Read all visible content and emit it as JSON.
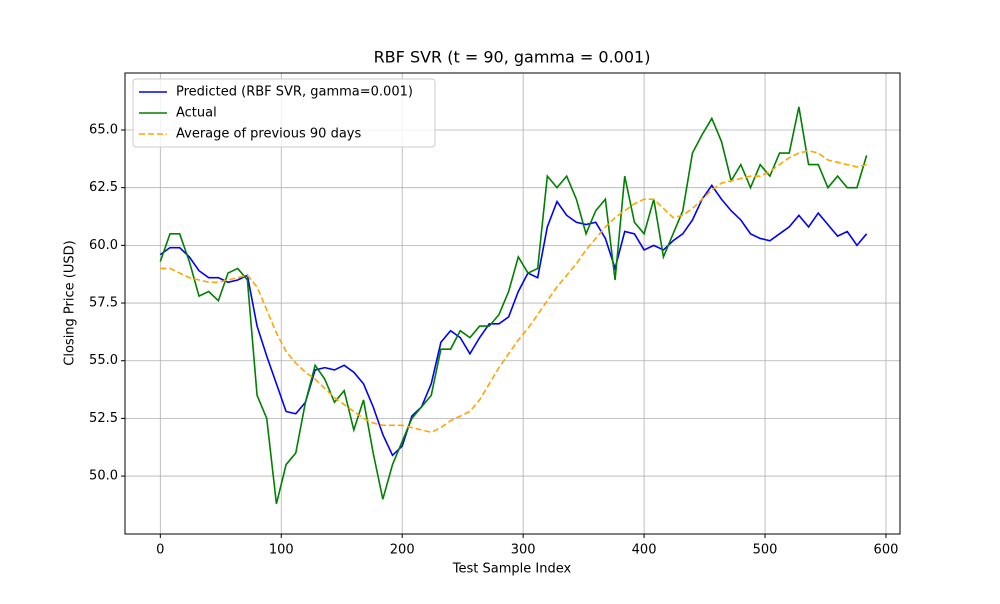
{
  "chart_data": {
    "type": "line",
    "title": "RBF SVR (t = 90, gamma = 0.001)",
    "x_label": "Test Sample Index",
    "y_label": "Closing Price (USD)",
    "x": [
      0,
      8,
      16,
      24,
      32,
      40,
      48,
      56,
      64,
      72,
      80,
      88,
      96,
      104,
      112,
      120,
      128,
      136,
      144,
      152,
      160,
      168,
      176,
      184,
      192,
      200,
      208,
      216,
      224,
      232,
      240,
      248,
      256,
      264,
      272,
      280,
      288,
      296,
      304,
      312,
      320,
      328,
      336,
      344,
      352,
      360,
      368,
      376,
      384,
      392,
      400,
      408,
      416,
      424,
      432,
      440,
      448,
      456,
      464,
      472,
      480,
      488,
      496,
      504,
      512,
      520,
      528,
      536,
      544,
      552,
      560,
      568,
      576,
      584
    ],
    "series": [
      {
        "name": "Predicted (RBF SVR, gamma=0.001)",
        "color": "#0000ff",
        "linestyle": "solid",
        "values": [
          59.6,
          59.9,
          59.9,
          59.5,
          58.9,
          58.6,
          58.6,
          58.4,
          58.5,
          58.7,
          56.5,
          55.2,
          54.0,
          52.8,
          52.7,
          53.2,
          54.6,
          54.7,
          54.6,
          54.8,
          54.5,
          54.0,
          53.0,
          51.8,
          50.9,
          51.3,
          52.6,
          53.0,
          54.0,
          55.8,
          56.3,
          56.0,
          55.3,
          56.0,
          56.6,
          56.6,
          56.9,
          58.0,
          58.8,
          58.6,
          60.8,
          61.9,
          61.3,
          61.0,
          60.9,
          61.0,
          60.3,
          59.0,
          60.6,
          60.5,
          59.8,
          60.0,
          59.8,
          60.2,
          60.5,
          61.1,
          62.0,
          62.6,
          62.0,
          61.5,
          61.1,
          60.5,
          60.3,
          60.2,
          60.5,
          60.8,
          61.3,
          60.8,
          61.4,
          60.9,
          60.4,
          60.6,
          60.0,
          60.5
        ]
      },
      {
        "name": "Actual",
        "color": "#008000",
        "linestyle": "solid",
        "values": [
          59.3,
          60.5,
          60.5,
          59.3,
          57.8,
          58.0,
          57.6,
          58.8,
          59.0,
          58.5,
          53.5,
          52.5,
          48.8,
          50.5,
          51.0,
          53.2,
          54.8,
          54.2,
          53.2,
          53.7,
          52.0,
          53.3,
          51.0,
          49.0,
          50.5,
          51.5,
          52.5,
          53.0,
          53.5,
          55.5,
          55.5,
          56.3,
          56.0,
          56.5,
          56.5,
          57.0,
          58.0,
          59.5,
          58.8,
          59.0,
          63.0,
          62.5,
          63.0,
          62.0,
          60.5,
          61.5,
          62.0,
          58.5,
          63.0,
          61.0,
          60.5,
          62.0,
          59.5,
          60.5,
          61.5,
          64.0,
          64.8,
          65.5,
          64.5,
          62.8,
          63.5,
          62.5,
          63.5,
          63.0,
          64.0,
          64.0,
          66.0,
          63.5,
          63.5,
          62.5,
          63.0,
          62.5,
          62.5,
          63.9
        ]
      },
      {
        "name": "Average of previous 90 days",
        "color": "#ffa500",
        "linestyle": "dashed",
        "values": [
          59.0,
          59.0,
          58.8,
          58.6,
          58.5,
          58.4,
          58.4,
          58.5,
          58.6,
          58.7,
          58.2,
          57.2,
          56.2,
          55.4,
          54.9,
          54.5,
          54.2,
          53.8,
          53.4,
          53.1,
          52.8,
          52.5,
          52.3,
          52.2,
          52.2,
          52.2,
          52.1,
          52.0,
          51.9,
          52.1,
          52.4,
          52.6,
          52.8,
          53.3,
          54.0,
          54.7,
          55.3,
          55.9,
          56.4,
          57.0,
          57.6,
          58.2,
          58.7,
          59.2,
          59.8,
          60.3,
          60.8,
          61.2,
          61.5,
          61.8,
          62.0,
          62.0,
          61.6,
          61.2,
          61.3,
          61.6,
          62.0,
          62.4,
          62.7,
          62.8,
          62.9,
          63.0,
          63.0,
          63.2,
          63.5,
          63.8,
          64.0,
          64.1,
          64.0,
          63.7,
          63.6,
          63.5,
          63.4,
          63.5
        ]
      }
    ],
    "xlim": [
      -29.2,
      611.6
    ],
    "ylim": [
      47.49,
      67.47
    ],
    "xticks": [
      0,
      100,
      200,
      300,
      400,
      500,
      600
    ],
    "yticks": [
      {
        "value": 50,
        "label": "50.0"
      },
      52.5,
      {
        "value": 55,
        "label": "55.0"
      },
      57.5,
      {
        "value": 60,
        "label": "60.0"
      },
      62.5,
      {
        "value": 65,
        "label": "65.0"
      }
    ],
    "grid": true,
    "legend": "upper left"
  }
}
